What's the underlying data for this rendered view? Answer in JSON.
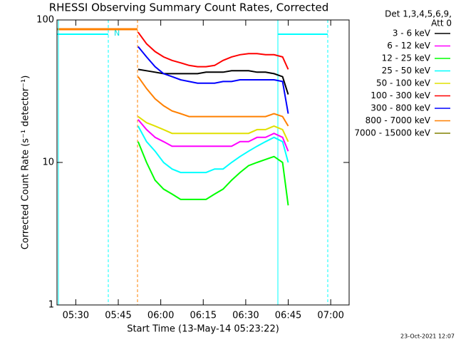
{
  "chart_data": {
    "type": "line",
    "title": "RHESSI Observing Summary Count Rates, Corrected",
    "x_label": "Start Time (13-May-14 05:23:22)",
    "y_label": "Corrected Count Rate (s⁻¹ detector⁻¹)",
    "legend_title": [
      "Det 1,3,4,5,6,9,",
      "Att 0"
    ],
    "footer": "23-Oct-2021 12:07",
    "annotations": [
      "N"
    ],
    "log_y": true,
    "xlim": [
      323.37,
      426.5
    ],
    "xticks": [
      {
        "value": 330,
        "label": "05:30"
      },
      {
        "value": 345,
        "label": "05:45"
      },
      {
        "value": 360,
        "label": "06:00"
      },
      {
        "value": 375,
        "label": "06:15"
      },
      {
        "value": 390,
        "label": "06:30"
      },
      {
        "value": 405,
        "label": "06:45"
      },
      {
        "value": 420,
        "label": "07:00"
      }
    ],
    "ylim": [
      1,
      100
    ],
    "yticks": [
      1,
      10,
      100
    ],
    "x": [
      352,
      355,
      358,
      361,
      364,
      367,
      370,
      373,
      376,
      379,
      382,
      385,
      388,
      391,
      394,
      397,
      400,
      403,
      405
    ],
    "series": [
      {
        "name": "3 - 6 keV",
        "color": "#000000",
        "values": [
          45,
          44,
          43,
          42,
          42,
          42,
          42,
          42,
          43,
          43,
          43,
          44,
          44,
          44,
          43,
          43,
          42,
          40,
          30
        ]
      },
      {
        "name": "6 - 12 keV",
        "color": "#ff00ff",
        "values": [
          20,
          17,
          15,
          14,
          13,
          13,
          13,
          13,
          13,
          13,
          13,
          13,
          14,
          14,
          15,
          15,
          16,
          15,
          12
        ]
      },
      {
        "name": "12 - 25 keV",
        "color": "#00ff00",
        "values": [
          14,
          10,
          7.5,
          6.5,
          6,
          5.5,
          5.5,
          5.5,
          5.5,
          6,
          6.5,
          7.5,
          8.5,
          9.5,
          10,
          10.5,
          11,
          10,
          5
        ]
      },
      {
        "name": "25 - 50 keV",
        "color": "#00ffff",
        "values": [
          18,
          14,
          12,
          10,
          9,
          8.5,
          8.5,
          8.5,
          8.5,
          9,
          9,
          10,
          11,
          12,
          13,
          14,
          15,
          14,
          10
        ]
      },
      {
        "name": "50 - 100 keV",
        "color": "#e0e000",
        "values": [
          21,
          19,
          18,
          17,
          16,
          16,
          16,
          16,
          16,
          16,
          16,
          16,
          16,
          16,
          17,
          17,
          18,
          17,
          14
        ]
      },
      {
        "name": "100 - 300 keV",
        "color": "#ff0000",
        "values": [
          82,
          68,
          60,
          55,
          52,
          50,
          48,
          47,
          47,
          48,
          52,
          55,
          57,
          58,
          58,
          57,
          57,
          55,
          45
        ]
      },
      {
        "name": "300 - 800 keV",
        "color": "#0000ff",
        "values": [
          65,
          55,
          47,
          42,
          40,
          38,
          37,
          36,
          36,
          36,
          37,
          37,
          38,
          38,
          38,
          38,
          38,
          37,
          22
        ]
      },
      {
        "name": "800 - 7000 keV",
        "color": "#ff8000",
        "values": [
          40,
          33,
          28,
          25,
          23,
          22,
          21,
          21,
          21,
          21,
          21,
          21,
          21,
          21,
          21,
          21,
          22,
          21,
          18
        ]
      },
      {
        "name": "7000 - 15000 keV",
        "color": "#808000",
        "values": [
          null,
          null,
          null,
          null,
          null,
          null,
          null,
          null,
          null,
          null,
          null,
          null,
          null,
          null,
          null,
          null,
          null,
          null,
          null
        ]
      }
    ]
  }
}
